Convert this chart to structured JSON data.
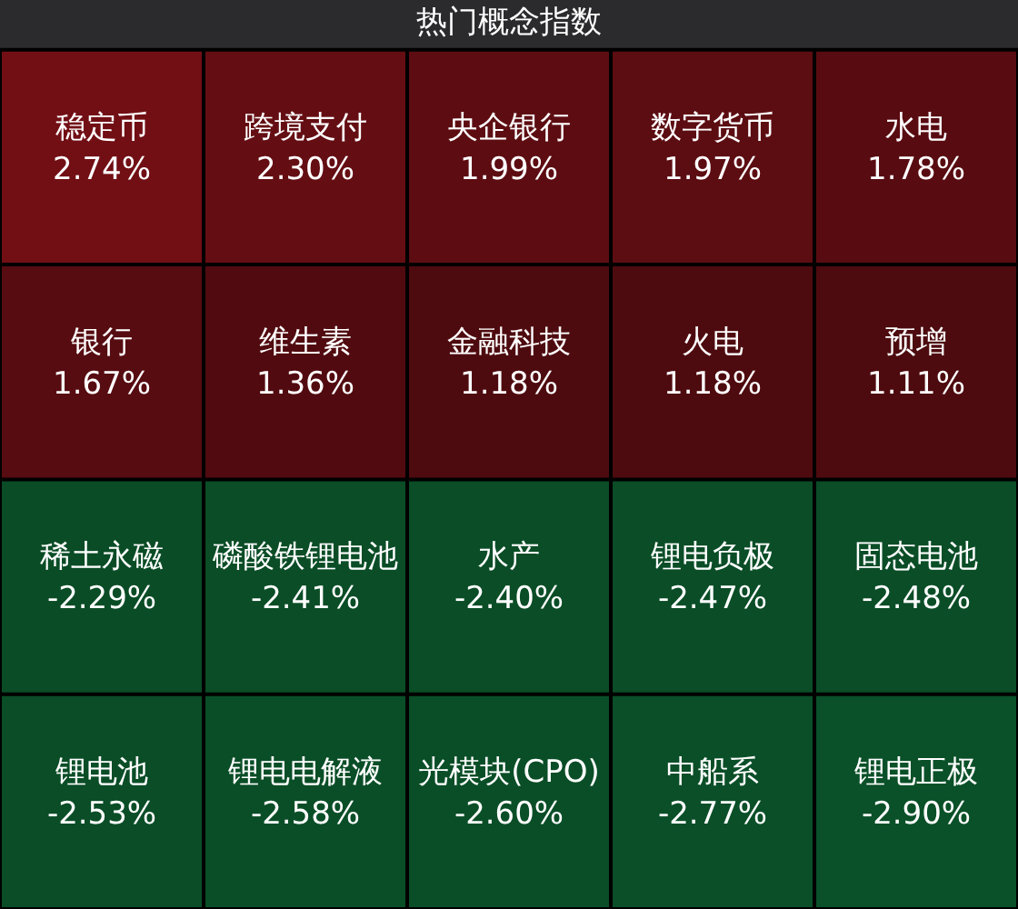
{
  "chart_data": {
    "type": "other",
    "title": "热门概念指数",
    "categories": [
      "稳定币",
      "跨境支付",
      "央企银行",
      "数字货币",
      "水电",
      "银行",
      "维生素",
      "金融科技",
      "火电",
      "预增",
      "稀土永磁",
      "磷酸铁锂电池",
      "水产",
      "锂电负极",
      "固态电池",
      "锂电池",
      "锂电电解液",
      "光模块(CPO)",
      "中船系",
      "锂电正极"
    ],
    "values": [
      2.74,
      2.3,
      1.99,
      1.97,
      1.78,
      1.67,
      1.36,
      1.18,
      1.18,
      1.11,
      -2.29,
      -2.41,
      -2.4,
      -2.47,
      -2.48,
      -2.53,
      -2.58,
      -2.6,
      -2.77,
      -2.9
    ],
    "value_labels": [
      "2.74%",
      "2.30%",
      "1.99%",
      "1.97%",
      "1.78%",
      "1.67%",
      "1.36%",
      "1.18%",
      "1.18%",
      "1.11%",
      "-2.29%",
      "-2.41%",
      "-2.40%",
      "-2.47%",
      "-2.48%",
      "-2.53%",
      "-2.58%",
      "-2.60%",
      "-2.77%",
      "-2.90%"
    ]
  }
}
